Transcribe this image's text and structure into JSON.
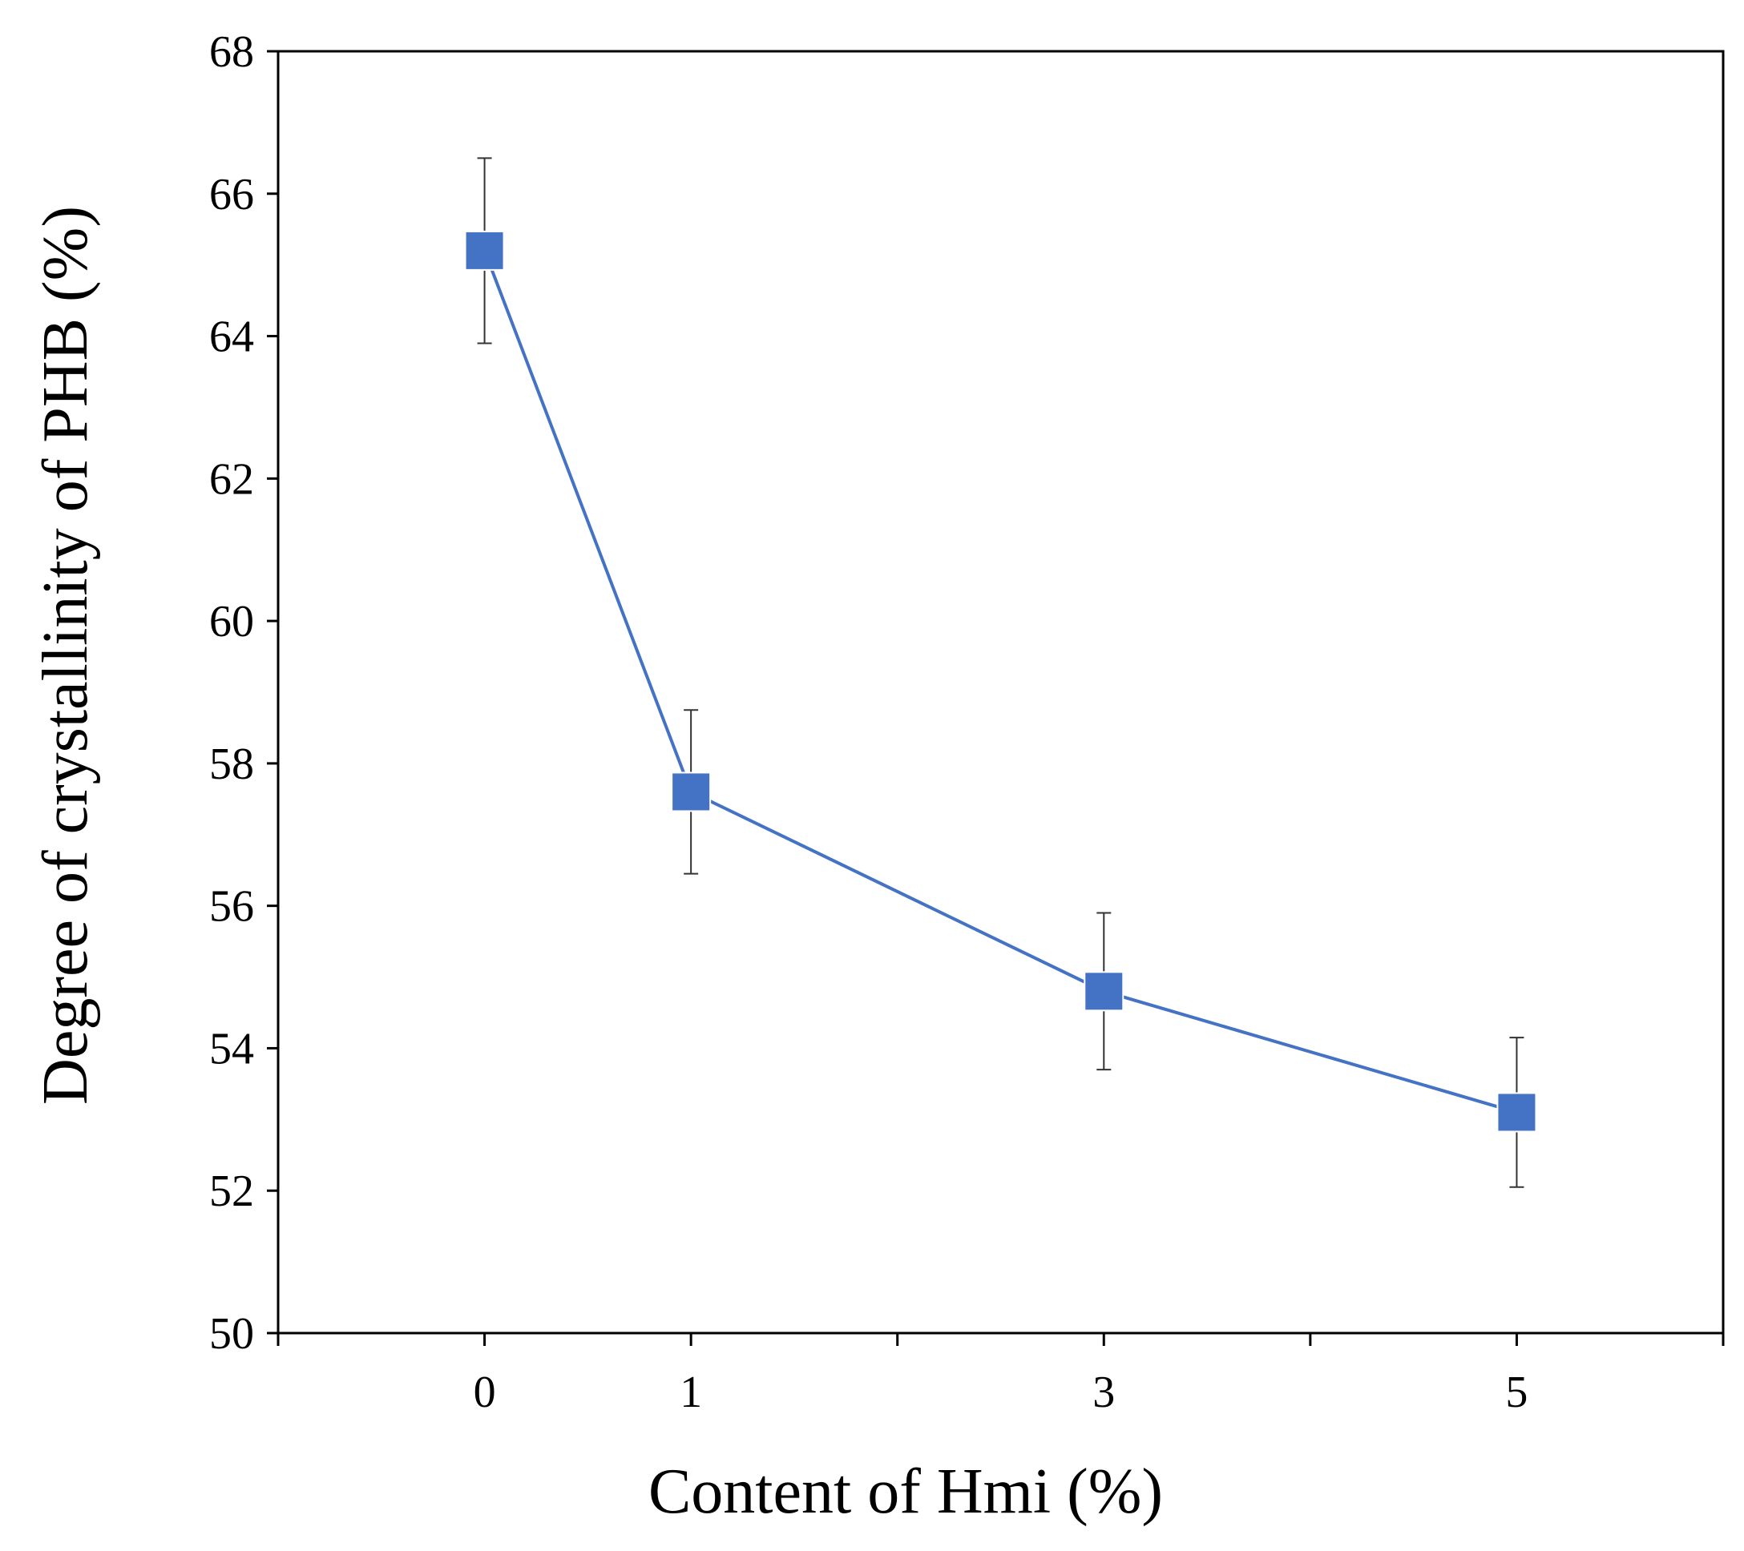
{
  "chart_data": {
    "type": "line",
    "xlabel": "Content of Hmi (%)",
    "ylabel": "Degree of crystallinity of PHB (%)",
    "categories": [
      "0",
      "1",
      "3",
      "5"
    ],
    "x": [
      0,
      1,
      3,
      5
    ],
    "xlim": [
      -1,
      6
    ],
    "ylim": [
      50,
      68
    ],
    "yticks": [
      50,
      52,
      54,
      56,
      58,
      60,
      62,
      64,
      66,
      68
    ],
    "series": [
      {
        "values": [
          65.2,
          57.6,
          54.8,
          53.1
        ],
        "error": [
          1.3,
          1.15,
          1.1,
          1.05
        ],
        "color": "#4472c4",
        "marker": "square"
      }
    ],
    "legend": "none",
    "grid": false
  }
}
